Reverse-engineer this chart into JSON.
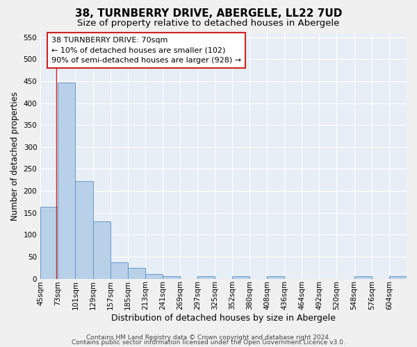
{
  "title": "38, TURNBERRY DRIVE, ABERGELE, LL22 7UD",
  "subtitle": "Size of property relative to detached houses in Abergele",
  "xlabel": "Distribution of detached houses by size in Abergele",
  "ylabel": "Number of detached properties",
  "bin_labels": [
    "45sqm",
    "73sqm",
    "101sqm",
    "129sqm",
    "157sqm",
    "185sqm",
    "213sqm",
    "241sqm",
    "269sqm",
    "297sqm",
    "325sqm",
    "352sqm",
    "380sqm",
    "408sqm",
    "436sqm",
    "464sqm",
    "492sqm",
    "520sqm",
    "548sqm",
    "576sqm",
    "604sqm"
  ],
  "bin_edges": [
    45,
    73,
    101,
    129,
    157,
    185,
    213,
    241,
    269,
    297,
    325,
    352,
    380,
    408,
    436,
    464,
    492,
    520,
    548,
    576,
    604
  ],
  "bar_heights": [
    163,
    447,
    222,
    130,
    37,
    25,
    11,
    5,
    0,
    5,
    0,
    5,
    0,
    5,
    0,
    0,
    0,
    0,
    5,
    0,
    5
  ],
  "bar_color": "#b8d0e8",
  "bar_edge_color": "#6699cc",
  "property_size": 70,
  "vline_color": "#cc2222",
  "ylim": [
    0,
    560
  ],
  "yticks": [
    0,
    50,
    100,
    150,
    200,
    250,
    300,
    350,
    400,
    450,
    500,
    550
  ],
  "annotation_line1": "38 TURNBERRY DRIVE: 70sqm",
  "annotation_line2": "← 10% of detached houses are smaller (102)",
  "annotation_line3": "90% of semi-detached houses are larger (928) →",
  "annotation_box_color": "#ffffff",
  "annotation_box_edge": "#cc2222",
  "footer_line1": "Contains HM Land Registry data © Crown copyright and database right 2024.",
  "footer_line2": "Contains public sector information licensed under the Open Government Licence v3.0.",
  "background_color": "#e8eef5",
  "grid_color": "#ffffff",
  "title_fontsize": 11,
  "subtitle_fontsize": 9.5,
  "xlabel_fontsize": 9,
  "ylabel_fontsize": 8.5,
  "tick_fontsize": 7.5,
  "annotation_fontsize": 8,
  "footer_fontsize": 6.5
}
